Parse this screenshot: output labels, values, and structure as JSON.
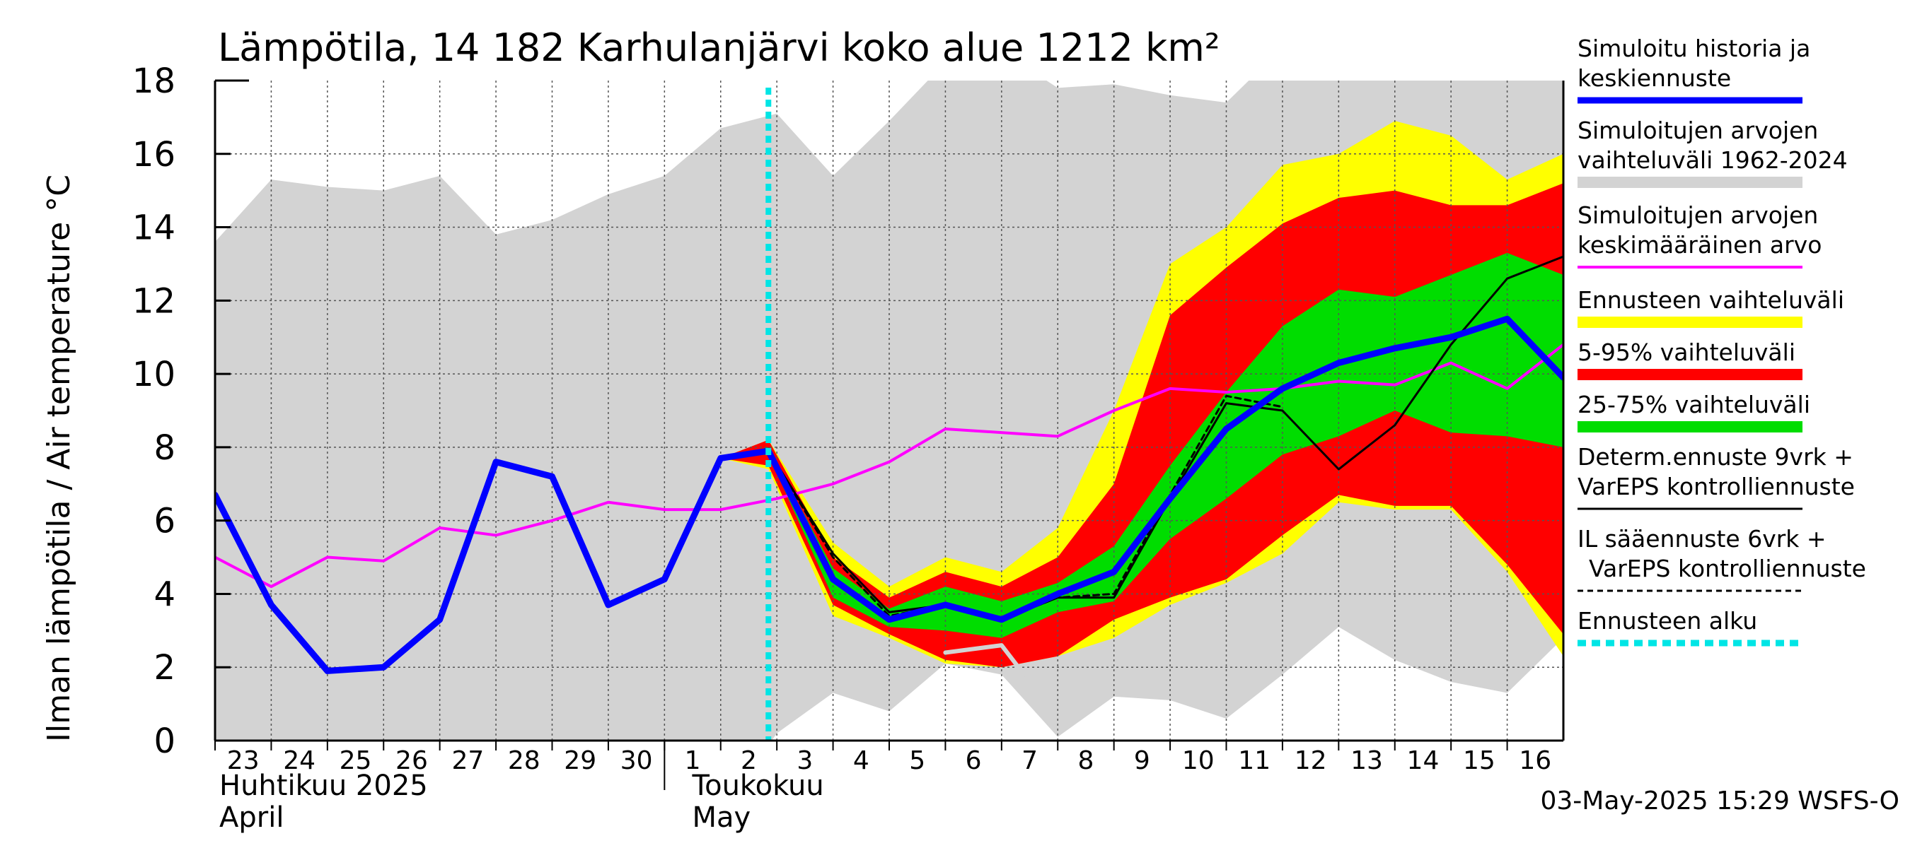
{
  "chart_data": {
    "type": "line",
    "title": "Lämpötila, 14 182 Karhulanjärvi koko alue 1212 km²",
    "ylabel": "Ilman lämpötila / Air temperature   °C",
    "ylim": [
      0,
      18
    ],
    "y_ticks": [
      "0",
      "2",
      "4",
      "6",
      "8",
      "10",
      "12",
      "14",
      "16",
      "18"
    ],
    "grid": true,
    "x_day_labels": [
      "23",
      "24",
      "25",
      "26",
      "27",
      "28",
      "29",
      "30",
      "1",
      "2",
      "3",
      "4",
      "5",
      "6",
      "7",
      "8",
      "9",
      "10",
      "11",
      "12",
      "13",
      "14",
      "15",
      "16"
    ],
    "month_labels": [
      {
        "fi": "Huhtikuu  2025",
        "en": "April"
      },
      {
        "fi": "Toukokuu",
        "en": "May"
      }
    ],
    "timestamp": "03-May-2025 15:29 WSFS-O",
    "forecast_start_x": 9.85,
    "colors": {
      "history": "#0000ff",
      "range_hist": "#d3d3d3",
      "mean": "#ff00ff",
      "range_fc": "#ffff00",
      "p5_95": "#ff0000",
      "p25_75": "#00dd00",
      "determ": "#000000",
      "start": "#00e5e5"
    },
    "legend": [
      {
        "label": "Simuloitu historia ja keskiennuste",
        "style": "history"
      },
      {
        "label": "Simuloitujen arvojen vaihteluväli 1962-2024",
        "style": "range_hist"
      },
      {
        "label": "Simuloitujen arvojen keskimääräinen arvo",
        "style": "mean"
      },
      {
        "label": "Ennusteen vaihteluväli",
        "style": "range_fc"
      },
      {
        "label": "5-95% vaihteluväli",
        "style": "p5_95"
      },
      {
        "label": "25-75% vaihteluväli",
        "style": "p25_75"
      },
      {
        "label": "Determ.ennuste 9vrk + VarEPS kontrolliennuste",
        "style": "determ"
      },
      {
        "label": "IL sääennuste 6vrk  + VarEPS kontrolliennuste",
        "style": "il"
      },
      {
        "label": "Ennusteen alku",
        "style": "start"
      }
    ],
    "series": [
      {
        "key": "range_hist",
        "name": "Simuloitujen arvojen vaihteluväli 1962-2024",
        "x": [
          0,
          1,
          2,
          3,
          4,
          5,
          6,
          7,
          8,
          9,
          10,
          11,
          12,
          13,
          14,
          15,
          16,
          17,
          18,
          19,
          20,
          21,
          22,
          23,
          24
        ],
        "high": [
          13.6,
          15.3,
          15.1,
          15.0,
          15.4,
          13.8,
          14.2,
          14.9,
          15.4,
          16.7,
          17.1,
          15.4,
          16.9,
          18.5,
          18.8,
          17.8,
          17.9,
          17.6,
          17.4,
          18.9,
          18.8,
          18.7,
          18.6,
          18.9,
          18.7
        ],
        "low": [
          -2,
          -2,
          -2,
          -2,
          -2,
          -2,
          -2,
          -2,
          -2,
          -2,
          0.2,
          1.3,
          0.8,
          2.1,
          1.8,
          0.1,
          1.2,
          1.1,
          0.6,
          1.8,
          3.1,
          2.2,
          1.6,
          1.3,
          2.8
        ]
      },
      {
        "key": "range_fc",
        "name": "Ennusteen vaihteluväli",
        "x": [
          9,
          9.85,
          11,
          12,
          13,
          14,
          15,
          16,
          17,
          18,
          19,
          20,
          21,
          22,
          23,
          24
        ],
        "high": [
          7.7,
          8.2,
          5.4,
          4.2,
          5.0,
          4.6,
          5.8,
          9.0,
          13.0,
          14.0,
          15.7,
          16.0,
          16.9,
          16.5,
          15.3,
          16.0
        ],
        "low": [
          7.7,
          7.4,
          3.4,
          2.8,
          2.1,
          2.0,
          2.3,
          2.8,
          3.7,
          4.3,
          5.1,
          6.5,
          6.3,
          6.3,
          4.6,
          2.3
        ]
      },
      {
        "key": "p5_95",
        "name": "5-95% vaihteluväli",
        "x": [
          9,
          9.85,
          11,
          12,
          13,
          14,
          15,
          16,
          17,
          18,
          19,
          20,
          21,
          22,
          23,
          24
        ],
        "high": [
          7.7,
          8.2,
          5.0,
          3.9,
          4.6,
          4.2,
          5.0,
          7.0,
          11.6,
          12.9,
          14.1,
          14.8,
          15.0,
          14.6,
          14.6,
          15.2
        ],
        "low": [
          7.7,
          7.5,
          3.7,
          2.9,
          2.2,
          2.0,
          2.3,
          3.3,
          3.9,
          4.4,
          5.6,
          6.7,
          6.4,
          6.4,
          4.8,
          2.9
        ]
      },
      {
        "key": "p25_75",
        "name": "25-75% vaihteluväli",
        "x": [
          9,
          9.85,
          11,
          12,
          13,
          14,
          15,
          16,
          17,
          18,
          19,
          20,
          21,
          22,
          23,
          24
        ],
        "high": [
          7.7,
          8.0,
          4.7,
          3.6,
          4.2,
          3.8,
          4.3,
          5.3,
          7.5,
          9.5,
          11.3,
          12.3,
          12.1,
          12.7,
          13.3,
          12.7
        ],
        "low": [
          7.7,
          7.8,
          3.9,
          3.1,
          3.0,
          2.8,
          3.5,
          3.8,
          5.5,
          6.6,
          7.8,
          8.3,
          9.0,
          8.4,
          8.3,
          8.0
        ]
      },
      {
        "key": "mean",
        "name": "Simuloitujen arvojen keskimääräinen arvo",
        "x": [
          0,
          1,
          2,
          3,
          4,
          5,
          6,
          7,
          8,
          9,
          10,
          11,
          12,
          13,
          14,
          15,
          16,
          17,
          18,
          19,
          20,
          21,
          22,
          23,
          24
        ],
        "y": [
          5.0,
          4.2,
          5.0,
          4.9,
          5.8,
          5.6,
          6.0,
          6.5,
          6.3,
          6.3,
          6.6,
          7.0,
          7.6,
          8.5,
          8.4,
          8.3,
          9.0,
          9.6,
          9.5,
          9.6,
          9.8,
          9.7,
          10.3,
          9.6,
          10.8
        ]
      },
      {
        "key": "determ",
        "name": "Determ.ennuste 9vrk + VarEPS kontrolliennuste",
        "x": [
          9,
          9.85,
          11,
          12,
          13,
          14,
          15,
          16,
          17,
          18,
          19,
          20,
          21,
          22,
          23,
          24
        ],
        "y": [
          7.7,
          7.9,
          5.1,
          3.5,
          3.7,
          3.3,
          3.9,
          3.9,
          6.6,
          9.2,
          9.0,
          7.4,
          8.6,
          10.8,
          12.6,
          13.2
        ]
      },
      {
        "key": "il",
        "name": "IL sääennuste 6vrk  + VarEPS kontrolliennuste",
        "x": [
          9,
          9.85,
          11,
          12,
          13,
          14,
          15,
          16,
          17,
          18,
          19
        ],
        "y": [
          7.7,
          7.9,
          5.0,
          3.4,
          3.7,
          3.3,
          3.9,
          4.0,
          6.7,
          9.4,
          9.1
        ]
      },
      {
        "key": "history",
        "name": "Simuloitu historia ja keskiennuste",
        "x": [
          0,
          1,
          2,
          3,
          4,
          5,
          6,
          7,
          8,
          9,
          9.85,
          11,
          12,
          13,
          14,
          15,
          16,
          17,
          18,
          19,
          20,
          21,
          22,
          23,
          24
        ],
        "y": [
          6.7,
          3.7,
          1.9,
          2.0,
          3.3,
          7.6,
          7.2,
          3.7,
          4.4,
          7.7,
          7.9,
          4.4,
          3.3,
          3.7,
          3.3,
          4.0,
          4.6,
          6.6,
          8.5,
          9.6,
          10.3,
          10.7,
          11.0,
          11.5,
          9.9
        ]
      },
      {
        "key": "gray_line",
        "name": "",
        "x": [
          13,
          14,
          14.4
        ],
        "y": [
          2.4,
          2.6,
          1.8
        ]
      }
    ]
  }
}
